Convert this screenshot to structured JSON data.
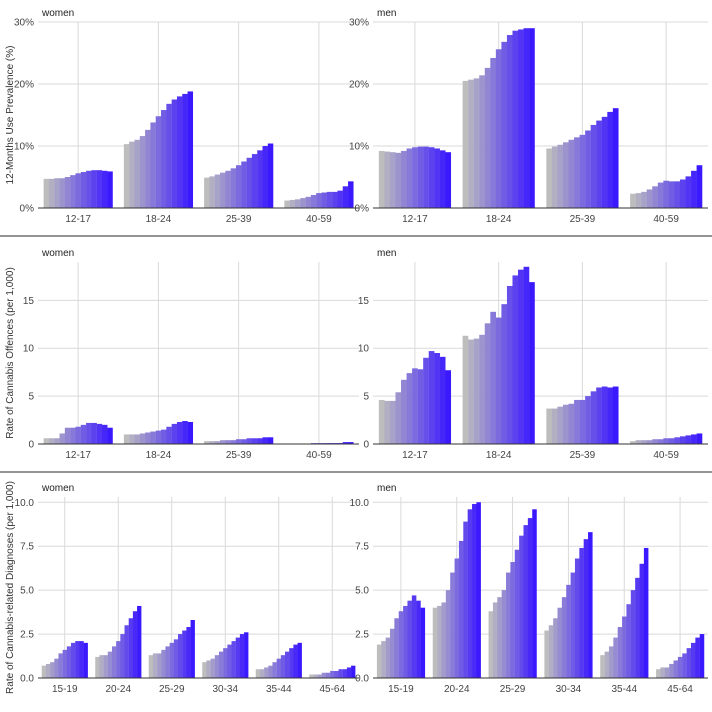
{
  "colors": {
    "start": "#bdbdbd",
    "end": "#3b19ff",
    "grid": "#d9d9d9",
    "axis": "#333333",
    "divider": "#555555"
  },
  "chart_data": [
    {
      "type": "bar",
      "ylabel": "12-Months Use Prevalence (%)",
      "ylim": [
        0,
        30
      ],
      "yticks": [
        0,
        10,
        20,
        30
      ],
      "ytick_labels": [
        "0%",
        "10%",
        "20%",
        "30%"
      ],
      "panels": [
        {
          "facet": "women",
          "categories": [
            "12-17",
            "18-24",
            "25-39",
            "40-59"
          ],
          "values": [
            [
              4.7,
              4.7,
              4.8,
              4.8,
              5.0,
              5.3,
              5.6,
              5.8,
              6.0,
              6.1,
              6.1,
              6.0,
              5.9
            ],
            [
              10.3,
              10.7,
              11.0,
              11.6,
              12.6,
              13.8,
              14.8,
              15.8,
              16.8,
              17.5,
              18.0,
              18.4,
              18.8
            ],
            [
              4.9,
              5.1,
              5.4,
              5.7,
              6.0,
              6.4,
              6.9,
              7.5,
              8.1,
              8.7,
              9.3,
              10.0,
              10.4
            ],
            [
              1.2,
              1.3,
              1.4,
              1.6,
              1.8,
              2.1,
              2.4,
              2.5,
              2.6,
              2.6,
              2.8,
              3.5,
              4.3
            ]
          ]
        },
        {
          "facet": "men",
          "categories": [
            "12-17",
            "18-24",
            "25-39",
            "40-59"
          ],
          "values": [
            [
              9.2,
              9.1,
              9.0,
              8.9,
              9.2,
              9.6,
              9.8,
              9.9,
              9.9,
              9.8,
              9.6,
              9.3,
              9.0
            ],
            [
              20.5,
              20.7,
              20.9,
              21.4,
              22.6,
              24.2,
              25.6,
              26.8,
              27.9,
              28.6,
              28.8,
              29.0,
              29.0
            ],
            [
              9.6,
              9.9,
              10.2,
              10.6,
              11.0,
              11.4,
              11.8,
              12.5,
              13.4,
              14.1,
              14.7,
              15.5,
              16.1
            ],
            [
              2.3,
              2.4,
              2.6,
              3.0,
              3.5,
              4.1,
              4.4,
              4.3,
              4.3,
              4.6,
              5.1,
              6.0,
              6.9
            ]
          ]
        }
      ]
    },
    {
      "type": "bar",
      "ylabel": "Rate of Cannabis Offences (per 1,000)",
      "ylim": [
        0,
        19
      ],
      "yticks": [
        0,
        5,
        10,
        15
      ],
      "ytick_labels": [
        "0",
        "5",
        "10",
        "15"
      ],
      "panels": [
        {
          "facet": "women",
          "categories": [
            "12-17",
            "18-24",
            "25-39",
            "40-59"
          ],
          "values": [
            [
              0.6,
              0.6,
              0.6,
              1.1,
              1.7,
              1.7,
              1.8,
              2.0,
              2.2,
              2.2,
              2.1,
              2.0,
              1.7
            ],
            [
              1.0,
              1.0,
              1.0,
              1.1,
              1.2,
              1.3,
              1.4,
              1.5,
              1.8,
              2.1,
              2.3,
              2.4,
              2.3
            ],
            [
              0.3,
              0.3,
              0.3,
              0.4,
              0.4,
              0.4,
              0.5,
              0.5,
              0.6,
              0.6,
              0.6,
              0.7,
              0.7
            ],
            [
              0.0,
              0.0,
              0.0,
              0.0,
              0.0,
              0.1,
              0.1,
              0.1,
              0.1,
              0.1,
              0.1,
              0.2,
              0.2
            ]
          ]
        },
        {
          "facet": "men",
          "categories": [
            "12-17",
            "18-24",
            "25-39",
            "40-59"
          ],
          "values": [
            [
              4.6,
              4.5,
              4.5,
              5.4,
              6.7,
              7.4,
              7.9,
              7.8,
              9.0,
              9.7,
              9.5,
              9.1,
              7.7
            ],
            [
              11.3,
              10.9,
              11.0,
              11.4,
              12.6,
              13.8,
              13.2,
              14.6,
              16.5,
              17.6,
              18.2,
              18.5,
              16.9
            ],
            [
              3.7,
              3.7,
              3.9,
              4.1,
              4.2,
              4.6,
              4.6,
              5.0,
              5.5,
              5.9,
              6.0,
              5.9,
              6.0
            ],
            [
              0.3,
              0.4,
              0.4,
              0.4,
              0.5,
              0.5,
              0.6,
              0.6,
              0.7,
              0.8,
              0.9,
              1.0,
              1.1
            ]
          ]
        }
      ]
    },
    {
      "type": "bar",
      "ylabel": "Rate of Cannabis-related Diagnoses (per 1,000)",
      "ylim": [
        0,
        10.3
      ],
      "yticks": [
        0,
        2.5,
        5,
        7.5,
        10
      ],
      "ytick_labels": [
        "0.0",
        "2.5",
        "5.0",
        "7.5",
        "10.0"
      ],
      "panels": [
        {
          "facet": "women",
          "categories": [
            "15-19",
            "20-24",
            "25-29",
            "30-34",
            "35-44",
            "45-64"
          ],
          "values": [
            [
              0.7,
              0.8,
              0.9,
              1.1,
              1.4,
              1.6,
              1.8,
              2.0,
              2.1,
              2.1,
              2.0
            ],
            [
              1.2,
              1.3,
              1.3,
              1.5,
              1.8,
              2.1,
              2.5,
              3.0,
              3.4,
              3.8,
              4.1
            ],
            [
              1.3,
              1.4,
              1.4,
              1.6,
              1.8,
              2.0,
              2.2,
              2.5,
              2.7,
              2.9,
              3.3
            ],
            [
              0.9,
              1.0,
              1.1,
              1.3,
              1.5,
              1.7,
              1.9,
              2.1,
              2.3,
              2.5,
              2.6
            ],
            [
              0.5,
              0.5,
              0.6,
              0.7,
              0.9,
              1.1,
              1.3,
              1.5,
              1.7,
              1.9,
              2.0
            ],
            [
              0.2,
              0.2,
              0.2,
              0.3,
              0.3,
              0.4,
              0.4,
              0.5,
              0.5,
              0.6,
              0.7
            ]
          ]
        },
        {
          "facet": "men",
          "categories": [
            "15-19",
            "20-24",
            "25-29",
            "30-34",
            "35-44",
            "45-64"
          ],
          "values": [
            [
              1.9,
              2.1,
              2.3,
              2.8,
              3.4,
              3.8,
              4.1,
              4.4,
              4.7,
              4.4,
              4.0
            ],
            [
              4.0,
              4.1,
              4.3,
              5.0,
              6.0,
              6.8,
              7.8,
              8.9,
              9.6,
              9.9,
              10.0
            ],
            [
              3.8,
              4.3,
              4.6,
              5.0,
              6.0,
              6.6,
              7.3,
              8.1,
              8.7,
              9.1,
              9.6
            ],
            [
              2.7,
              3.0,
              3.4,
              4.0,
              4.6,
              5.3,
              6.0,
              6.8,
              7.4,
              7.9,
              8.3
            ],
            [
              1.3,
              1.5,
              1.8,
              2.3,
              2.9,
              3.5,
              4.2,
              5.0,
              5.7,
              6.5,
              7.4
            ],
            [
              0.5,
              0.6,
              0.6,
              0.8,
              1.0,
              1.2,
              1.4,
              1.7,
              2.0,
              2.3,
              2.5
            ]
          ]
        }
      ]
    }
  ]
}
